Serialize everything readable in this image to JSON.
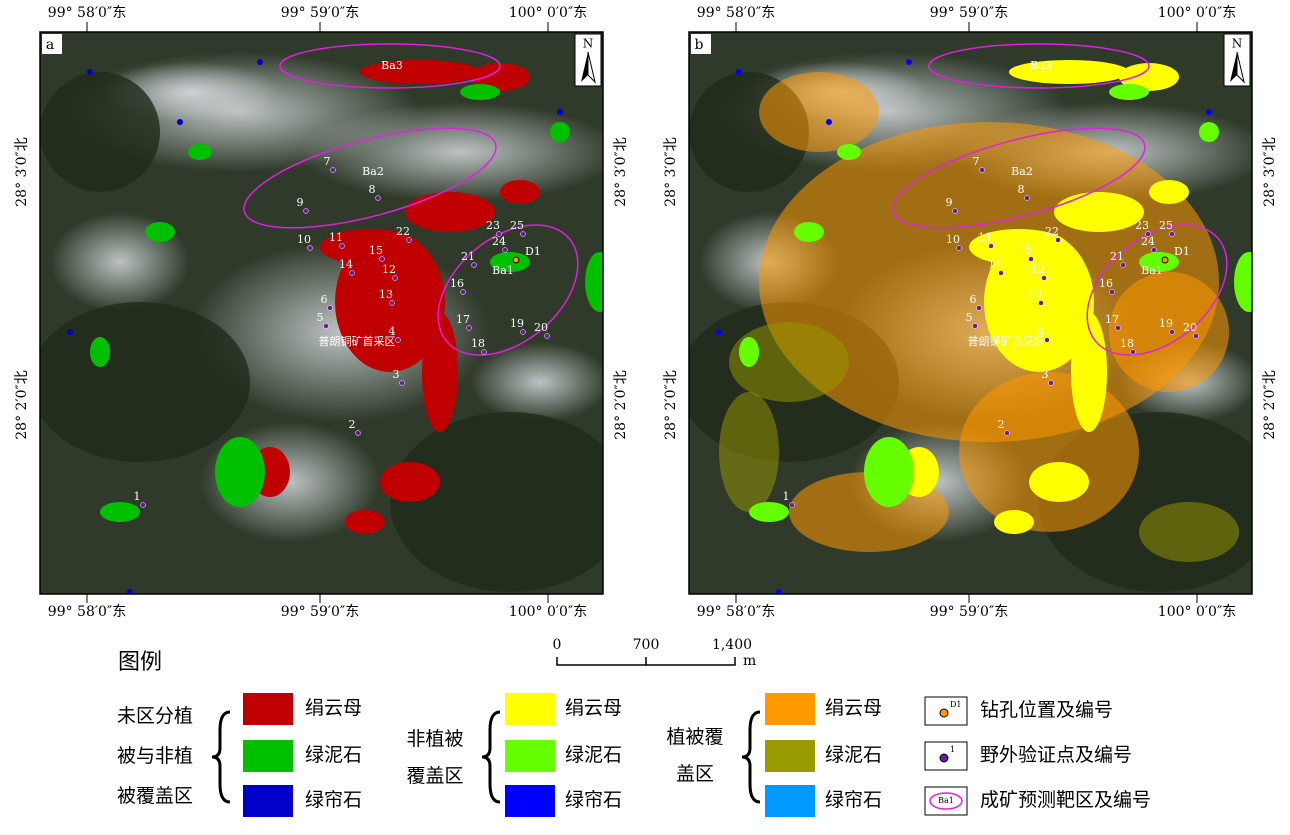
{
  "panels": [
    {
      "label": "a"
    },
    {
      "label": "b"
    }
  ],
  "coords": {
    "lon": [
      "99° 58′0″东",
      "99° 59′0″东",
      "100° 0′0″东"
    ],
    "lat": [
      "28° 3′0″北",
      "28° 2′0″北"
    ]
  },
  "north": "N",
  "points": [
    "1",
    "2",
    "3",
    "4",
    "5",
    "6",
    "7",
    "8",
    "9",
    "10",
    "11",
    "12",
    "13",
    "14",
    "15",
    "16",
    "17",
    "18",
    "19",
    "20",
    "21",
    "22",
    "23",
    "24",
    "25"
  ],
  "drill": "D1",
  "targets": [
    "Ba1",
    "Ba2",
    "Ba3"
  ],
  "area_label": "普朗铜矿首采区",
  "scale": {
    "ticks": [
      "0",
      "700",
      "1,400"
    ],
    "unit": "m"
  },
  "legend": {
    "title": "图例",
    "groups": [
      {
        "lines": [
          "未区分植",
          "被与非植",
          "被覆盖区"
        ],
        "items": [
          {
            "label": "绢云母",
            "color": "#c00000"
          },
          {
            "label": "绿泥石",
            "color": "#00c000"
          },
          {
            "label": "绿帘石",
            "color": "#0000c8"
          }
        ]
      },
      {
        "lines": [
          "非植被",
          "覆盖区"
        ],
        "items": [
          {
            "label": "绢云母",
            "color": "#ffff00"
          },
          {
            "label": "绿泥石",
            "color": "#66ff00"
          },
          {
            "label": "绿帘石",
            "color": "#0000ff"
          }
        ]
      },
      {
        "lines": [
          "植被覆",
          "盖区"
        ],
        "items": [
          {
            "label": "绢云母",
            "color": "#ff9900"
          },
          {
            "label": "绿泥石",
            "color": "#999900"
          },
          {
            "label": "绿帘石",
            "color": "#0099ff"
          }
        ]
      }
    ],
    "symbols": [
      {
        "icon": "D1",
        "label": "钻孔位置及编号"
      },
      {
        "icon": "1",
        "label": "野外验证点及编号"
      },
      {
        "icon": "Ba1",
        "label": "成矿预测靶区及编号"
      }
    ]
  }
}
